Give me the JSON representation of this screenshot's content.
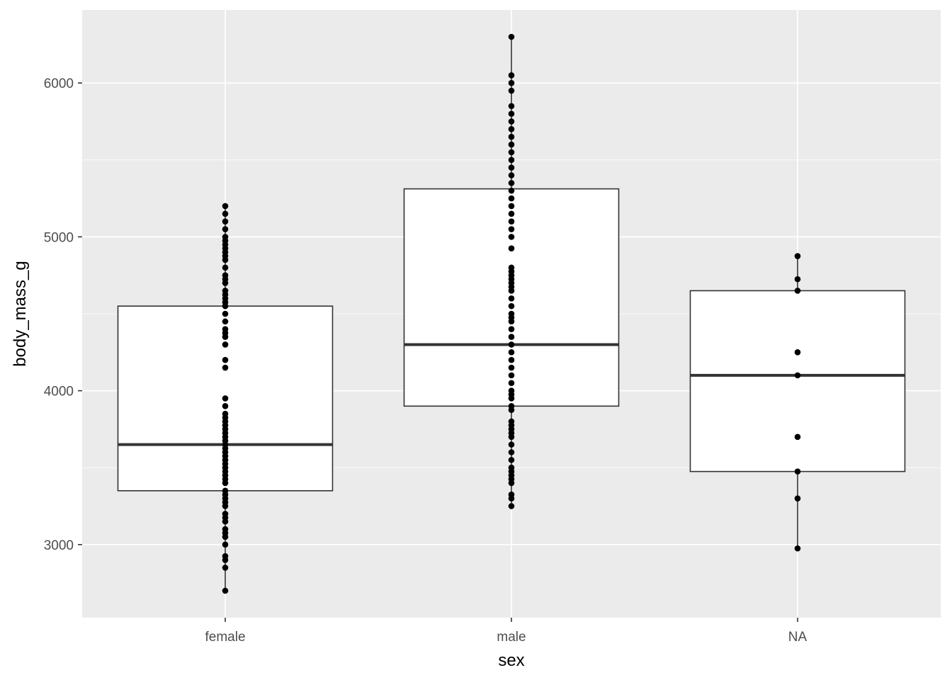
{
  "chart_data": {
    "type": "box",
    "xlabel": "sex",
    "ylabel": "body_mass_g",
    "categories": [
      "female",
      "male",
      "NA"
    ],
    "ylim": [
      2525,
      6475
    ],
    "y_ticks": [
      3000,
      4000,
      5000,
      6000
    ],
    "y_tick_labels": [
      "3000",
      "4000",
      "5000",
      "6000"
    ],
    "grid": true,
    "colors": {
      "panel": "#ebebeb",
      "grid": "#ffffff",
      "box_fill": "#ffffff",
      "box_line": "#333333",
      "points": "#000000"
    },
    "boxes": [
      {
        "category": "female",
        "whisker_low": 2700,
        "q1": 3350,
        "median": 3650,
        "q3": 4550,
        "whisker_high": 5200
      },
      {
        "category": "male",
        "whisker_low": 3250,
        "q1": 3900,
        "median": 4300,
        "q3": 5312,
        "whisker_high": 6300
      },
      {
        "category": "NA",
        "whisker_low": 2975,
        "q1": 3475,
        "median": 4100,
        "q3": 4650,
        "whisker_high": 4875
      }
    ],
    "points": [
      {
        "category": "female",
        "values": [
          2700,
          2850,
          2900,
          2925,
          3000,
          3050,
          3075,
          3100,
          3150,
          3175,
          3200,
          3250,
          3275,
          3300,
          3325,
          3350,
          3400,
          3425,
          3450,
          3475,
          3500,
          3525,
          3550,
          3575,
          3600,
          3625,
          3650,
          3675,
          3700,
          3725,
          3750,
          3775,
          3800,
          3825,
          3850,
          3900,
          3950,
          4150,
          4200,
          4300,
          4350,
          4375,
          4400,
          4450,
          4500,
          4550,
          4575,
          4600,
          4625,
          4650,
          4700,
          4725,
          4750,
          4800,
          4850,
          4875,
          4900,
          4925,
          4950,
          4975,
          5000,
          5050,
          5100,
          5150,
          5200
        ]
      },
      {
        "category": "male",
        "values": [
          3250,
          3300,
          3325,
          3400,
          3425,
          3450,
          3475,
          3500,
          3550,
          3600,
          3650,
          3700,
          3725,
          3750,
          3775,
          3800,
          3875,
          3900,
          3950,
          3975,
          4000,
          4050,
          4100,
          4150,
          4200,
          4250,
          4300,
          4350,
          4400,
          4450,
          4475,
          4500,
          4550,
          4600,
          4650,
          4675,
          4700,
          4725,
          4750,
          4775,
          4800,
          4925,
          5000,
          5050,
          5100,
          5150,
          5200,
          5250,
          5300,
          5350,
          5400,
          5450,
          5500,
          5550,
          5600,
          5650,
          5700,
          5750,
          5800,
          5850,
          5950,
          6000,
          6050,
          6300
        ]
      },
      {
        "category": "NA",
        "values": [
          2975,
          3300,
          3475,
          3700,
          4100,
          4250,
          4650,
          4725,
          4875
        ]
      }
    ]
  }
}
